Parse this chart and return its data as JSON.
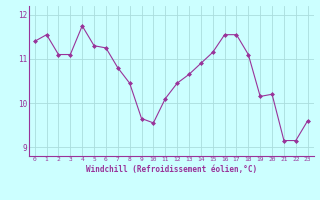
{
  "x": [
    0,
    1,
    2,
    3,
    4,
    5,
    6,
    7,
    8,
    9,
    10,
    11,
    12,
    13,
    14,
    15,
    16,
    17,
    18,
    19,
    20,
    21,
    22,
    23
  ],
  "y": [
    11.4,
    11.55,
    11.1,
    11.1,
    11.75,
    11.3,
    11.25,
    10.8,
    10.45,
    9.65,
    9.55,
    10.1,
    10.45,
    10.65,
    10.9,
    11.15,
    11.55,
    11.55,
    11.1,
    10.15,
    10.2,
    9.15,
    9.15,
    9.6
  ],
  "line_color": "#993399",
  "marker": "D",
  "marker_size": 2,
  "bg_color": "#ccffff",
  "grid_color": "#aadddd",
  "axis_color": "#993399",
  "xlabel": "Windchill (Refroidissement éolien,°C)",
  "ylim": [
    8.8,
    12.2
  ],
  "yticks": [
    9,
    10,
    11,
    12
  ],
  "xticks": [
    0,
    1,
    2,
    3,
    4,
    5,
    6,
    7,
    8,
    9,
    10,
    11,
    12,
    13,
    14,
    15,
    16,
    17,
    18,
    19,
    20,
    21,
    22,
    23
  ]
}
